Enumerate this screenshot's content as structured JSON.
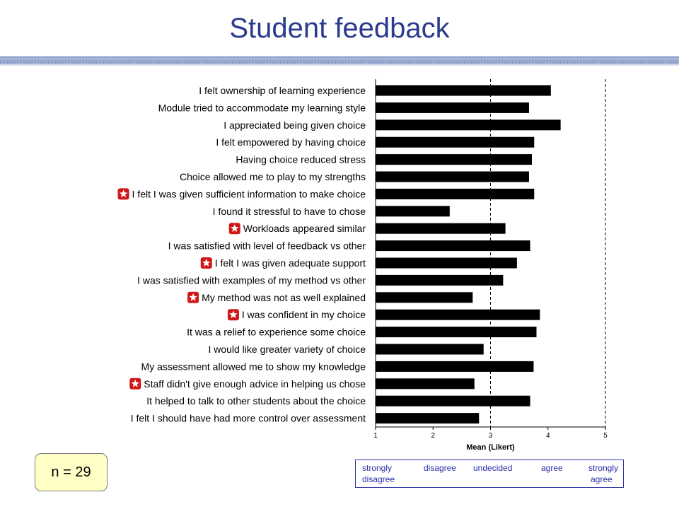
{
  "title": "Student feedback",
  "sample_size": "n = 29",
  "scale_legend": {
    "strongly_disagree_line1": "strongly",
    "strongly_disagree_line2": "disagree",
    "disagree": "disagree",
    "undecided": "undecided",
    "agree": "agree",
    "strongly_agree_line1": "strongly",
    "strongly_agree_line2": "agree"
  },
  "colors": {
    "title": "#2a3a8c",
    "bar": "#000000",
    "marker": "#d01818",
    "legend_border": "#2a2fa8",
    "sample_box_fill": "#ffffc6"
  },
  "chart_data": {
    "type": "bar",
    "orientation": "horizontal",
    "xlabel": "Mean (Likert)",
    "xlim": [
      1,
      5
    ],
    "xticks": [
      1,
      2,
      3,
      4,
      5
    ],
    "reference_lines": [
      3,
      5
    ],
    "categories": [
      "I felt ownership of learning experience",
      "Module tried to accommodate my learning style",
      "I appreciated being given choice",
      "I felt empowered by having choice",
      "Having choice reduced stress",
      "Choice allowed me to play to my strengths",
      "I felt I was given sufficient information to make choice",
      "I found it stressful to have to chose",
      "Workloads appeared similar",
      "I was satisfied with level of feedback vs other",
      "I felt I was given adequate support",
      "I was satisfied with examples of my method vs other",
      "My method was not as well explained",
      "I was confident in my choice",
      "It was a relief to experience some choice",
      "I would like greater variety of choice",
      "My assessment allowed me to show my knowledge",
      "Staff didn't give enough advice in helping us chose",
      "It helped to talk to other students about the choice",
      "I felt I should have had more control over assessment"
    ],
    "values": [
      4.05,
      3.67,
      4.22,
      3.76,
      3.72,
      3.67,
      3.76,
      2.29,
      3.26,
      3.69,
      3.46,
      3.22,
      2.69,
      3.86,
      3.8,
      2.88,
      3.75,
      2.72,
      3.69,
      2.8
    ],
    "flagged_items": [
      6,
      8,
      10,
      12,
      13,
      17
    ]
  }
}
